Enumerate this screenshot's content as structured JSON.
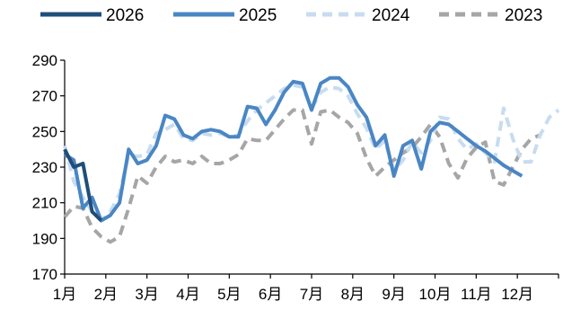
{
  "chart_data": {
    "type": "line",
    "title": "",
    "xlabel": "",
    "ylabel": "",
    "ylim": [
      170,
      290
    ],
    "yticks": [
      170,
      190,
      210,
      230,
      250,
      270,
      290
    ],
    "grid": false,
    "legend_position": "top",
    "x_ticks": [
      "1月",
      "2月",
      "3月",
      "4月",
      "5月",
      "6月",
      "7月",
      "8月",
      "9月",
      "10月",
      "11月",
      "12月"
    ],
    "series": [
      {
        "name": "2026",
        "color": "#1f4e79",
        "dash": "solid",
        "x": [
          1,
          2,
          3,
          4,
          5
        ],
        "values": [
          240,
          230,
          232,
          205,
          200
        ]
      },
      {
        "name": "2025",
        "color": "#4a86c5",
        "dash": "solid",
        "x": [
          1,
          2,
          3,
          4,
          5,
          6,
          7,
          8,
          9,
          10,
          11,
          12,
          13,
          14,
          15,
          16,
          17,
          18,
          19,
          20,
          21,
          22,
          23,
          24,
          25,
          26,
          27,
          28,
          29,
          30,
          31,
          32,
          33,
          34,
          35,
          36,
          37,
          38,
          39,
          40,
          41,
          42,
          43,
          44,
          45,
          46,
          47,
          48,
          49,
          50,
          51
        ],
        "values": [
          237,
          234,
          207,
          213,
          200,
          203,
          210,
          240,
          232,
          234,
          242,
          259,
          257,
          248,
          246,
          250,
          251,
          250,
          247,
          247,
          264,
          263,
          254,
          262,
          272,
          278,
          277,
          262,
          277,
          280,
          280,
          275,
          265,
          258,
          242,
          248,
          225,
          242,
          245,
          229,
          250,
          255,
          254,
          250,
          246,
          242,
          239,
          235,
          231,
          228,
          225
        ]
      },
      {
        "name": "2024",
        "color": "#c8dcf0",
        "dash": "dash",
        "x": [
          1,
          2,
          3,
          4,
          5,
          6,
          7,
          8,
          9,
          10,
          11,
          12,
          13,
          14,
          15,
          16,
          17,
          18,
          19,
          20,
          21,
          22,
          23,
          24,
          25,
          26,
          27,
          28,
          29,
          30,
          31,
          32,
          33,
          34,
          35,
          36,
          37,
          38,
          39,
          40,
          41,
          42,
          43,
          44,
          45,
          46,
          47,
          48,
          49,
          50,
          51,
          52,
          53,
          54,
          55
        ],
        "values": [
          242,
          222,
          213,
          205,
          200,
          205,
          215,
          237,
          236,
          237,
          249,
          251,
          254,
          246,
          245,
          249,
          248,
          249,
          247,
          248,
          256,
          262,
          266,
          270,
          274,
          276,
          275,
          263,
          272,
          275,
          274,
          270,
          260,
          252,
          240,
          245,
          228,
          234,
          244,
          238,
          245,
          258,
          257,
          246,
          240,
          243,
          238,
          233,
          263,
          246,
          233,
          233,
          248,
          258,
          262
        ]
      },
      {
        "name": "2023",
        "color": "#a6a6a6",
        "dash": "dash",
        "x": [
          1,
          2,
          3,
          4,
          5,
          6,
          7,
          8,
          9,
          10,
          11,
          12,
          13,
          14,
          15,
          16,
          17,
          18,
          19,
          20,
          21,
          22,
          23,
          24,
          25,
          26,
          27,
          28,
          29,
          30,
          31,
          32,
          33,
          34,
          35,
          36,
          37,
          38,
          39,
          40,
          41,
          42,
          43,
          44,
          45,
          46,
          47,
          48,
          49,
          50,
          51,
          52,
          53
        ],
        "values": [
          202,
          208,
          207,
          196,
          191,
          188,
          191,
          207,
          225,
          221,
          230,
          236,
          233,
          234,
          232,
          236,
          232,
          232,
          234,
          237,
          246,
          245,
          245,
          251,
          257,
          262,
          262,
          243,
          261,
          262,
          258,
          255,
          249,
          235,
          225,
          230,
          234,
          238,
          241,
          247,
          254,
          247,
          232,
          224,
          235,
          241,
          244,
          222,
          220,
          230,
          240,
          246,
          248
        ]
      }
    ]
  }
}
